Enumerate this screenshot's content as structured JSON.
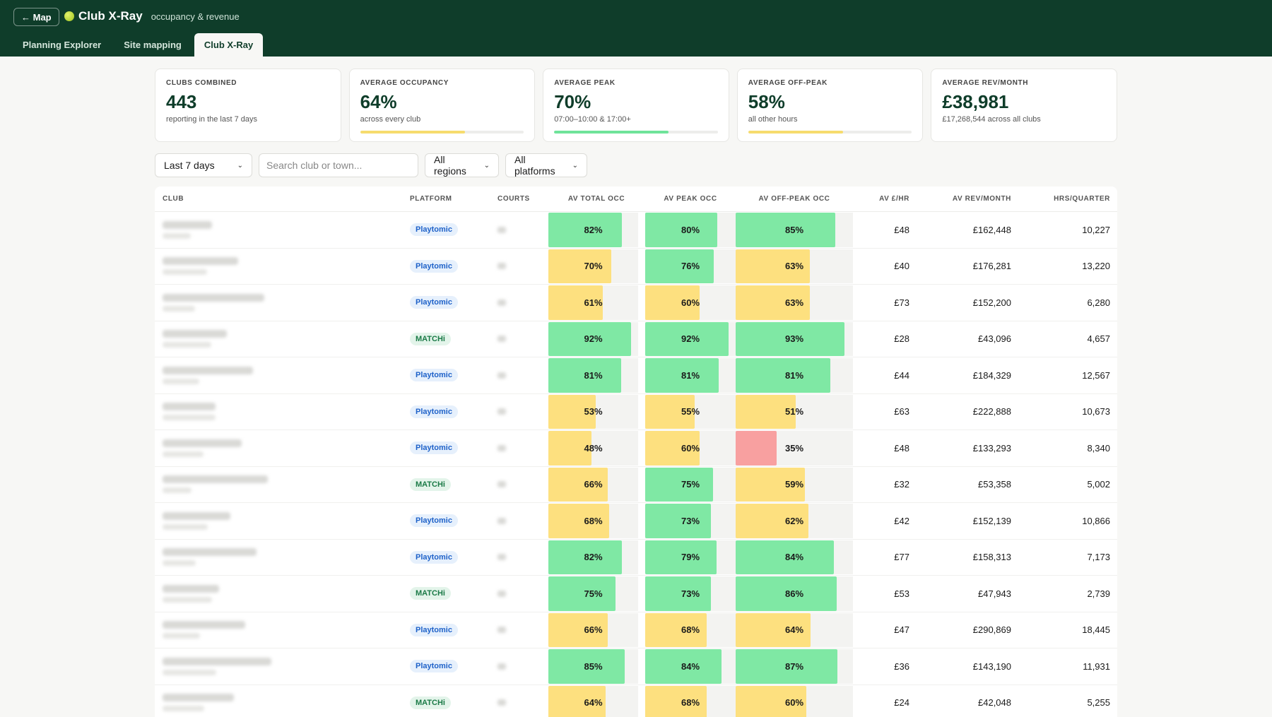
{
  "header": {
    "back_label": "← Map",
    "title": "Club X-Ray",
    "subtitle": "occupancy & revenue",
    "tabs": [
      {
        "label": "Planning Explorer",
        "active": false
      },
      {
        "label": "Site mapping",
        "active": false
      },
      {
        "label": "Club X-Ray",
        "active": true
      }
    ]
  },
  "kpis": [
    {
      "label": "CLUBS COMBINED",
      "value": "443",
      "sub": "reporting in the last 7 days",
      "bar": null
    },
    {
      "label": "AVERAGE OCCUPANCY",
      "value": "64%",
      "sub": "across every club",
      "bar": 0.64,
      "bar_color": "#f6dc6e"
    },
    {
      "label": "AVERAGE PEAK",
      "value": "70%",
      "sub": "07:00–10:00 & 17:00+",
      "bar": 0.7,
      "bar_color": "#6fe39a"
    },
    {
      "label": "AVERAGE OFF-PEAK",
      "value": "58%",
      "sub": "all other hours",
      "bar": 0.58,
      "bar_color": "#f6dc6e"
    },
    {
      "label": "AVERAGE REV/MONTH",
      "value": "£38,981",
      "sub": "£17,268,544 across all clubs",
      "bar": null
    }
  ],
  "filters": {
    "period": "Last 7 days",
    "search_placeholder": "Search club or town...",
    "region": "All regions",
    "platform": "All platforms"
  },
  "table": {
    "columns": [
      "CLUB",
      "PLATFORM",
      "COURTS",
      "AV TOTAL OCC",
      "AV PEAK OCC",
      "AV OFF-PEAK OCC",
      "AV £/HR",
      "AV REV/MONTH",
      "HRS/QUARTER"
    ],
    "rows": [
      {
        "platform": "Playtomic",
        "total": 82,
        "peak": 80,
        "off": 85,
        "hr": "£48",
        "rev": "£162,448",
        "hrs": "10,227"
      },
      {
        "platform": "Playtomic",
        "total": 70,
        "peak": 76,
        "off": 63,
        "hr": "£40",
        "rev": "£176,281",
        "hrs": "13,220"
      },
      {
        "platform": "Playtomic",
        "total": 61,
        "peak": 60,
        "off": 63,
        "hr": "£73",
        "rev": "£152,200",
        "hrs": "6,280"
      },
      {
        "platform": "MATCHi",
        "total": 92,
        "peak": 92,
        "off": 93,
        "hr": "£28",
        "rev": "£43,096",
        "hrs": "4,657"
      },
      {
        "platform": "Playtomic",
        "total": 81,
        "peak": 81,
        "off": 81,
        "hr": "£44",
        "rev": "£184,329",
        "hrs": "12,567"
      },
      {
        "platform": "Playtomic",
        "total": 53,
        "peak": 55,
        "off": 51,
        "hr": "£63",
        "rev": "£222,888",
        "hrs": "10,673"
      },
      {
        "platform": "Playtomic",
        "total": 48,
        "peak": 60,
        "off": 35,
        "hr": "£48",
        "rev": "£133,293",
        "hrs": "8,340"
      },
      {
        "platform": "MATCHi",
        "total": 66,
        "peak": 75,
        "off": 59,
        "hr": "£32",
        "rev": "£53,358",
        "hrs": "5,002"
      },
      {
        "platform": "Playtomic",
        "total": 68,
        "peak": 73,
        "off": 62,
        "hr": "£42",
        "rev": "£152,139",
        "hrs": "10,866"
      },
      {
        "platform": "Playtomic",
        "total": 82,
        "peak": 79,
        "off": 84,
        "hr": "£77",
        "rev": "£158,313",
        "hrs": "7,173"
      },
      {
        "platform": "MATCHi",
        "total": 75,
        "peak": 73,
        "off": 86,
        "hr": "£53",
        "rev": "£47,943",
        "hrs": "2,739"
      },
      {
        "platform": "Playtomic",
        "total": 66,
        "peak": 68,
        "off": 64,
        "hr": "£47",
        "rev": "£290,869",
        "hrs": "18,445"
      },
      {
        "platform": "Playtomic",
        "total": 85,
        "peak": 84,
        "off": 87,
        "hr": "£36",
        "rev": "£143,190",
        "hrs": "11,931"
      },
      {
        "platform": "MATCHi",
        "total": 64,
        "peak": 68,
        "off": 60,
        "hr": "£24",
        "rev": "£42,048",
        "hrs": "5,255"
      }
    ]
  },
  "colors": {
    "high": "#7fe8a4",
    "mid": "#fde07f",
    "low": "#f8a0a0"
  }
}
